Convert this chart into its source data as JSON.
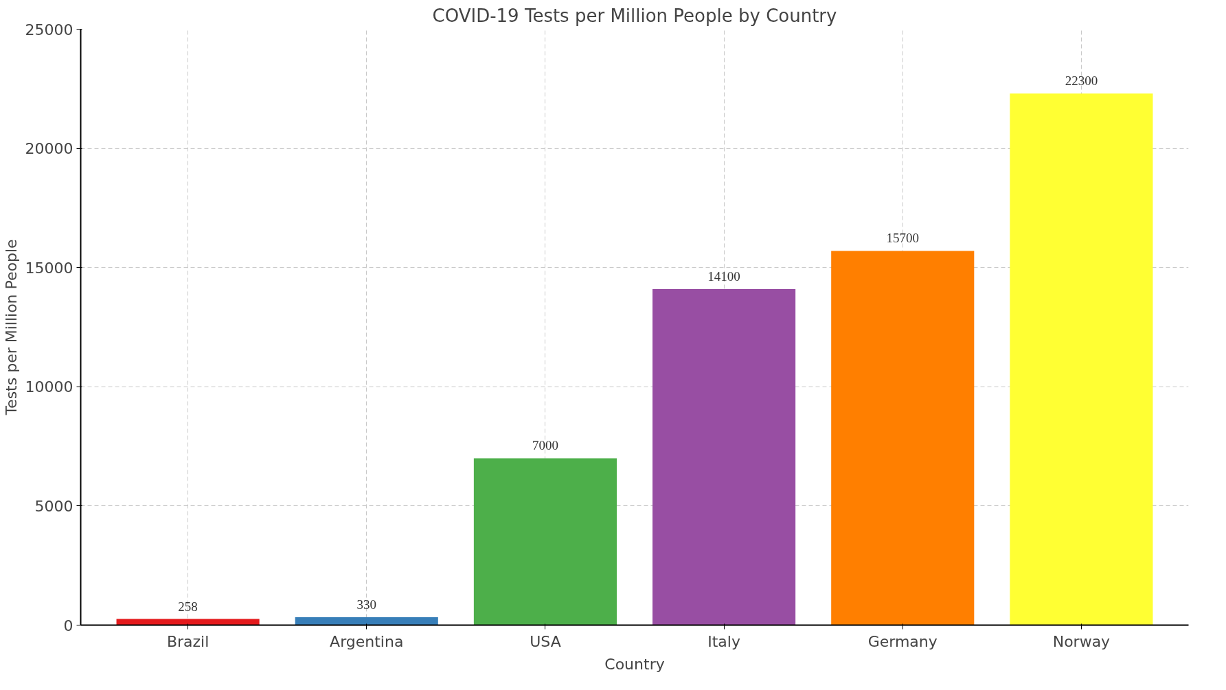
{
  "chart_data": {
    "type": "bar",
    "title": "COVID-19 Tests per Million People by Country",
    "xlabel": "Country",
    "ylabel": "Tests per Million People",
    "categories": [
      "Brazil",
      "Argentina",
      "USA",
      "Italy",
      "Germany",
      "Norway"
    ],
    "values": [
      258,
      330,
      7000,
      14100,
      15700,
      22300
    ],
    "colors": [
      "#e41a1c",
      "#377eb8",
      "#4daf4a",
      "#984ea3",
      "#ff7f00",
      "#ffff33"
    ],
    "ylim": [
      0,
      25000
    ],
    "yticks": [
      0,
      5000,
      10000,
      15000,
      20000,
      25000
    ],
    "grid": true,
    "data_labels": true
  }
}
